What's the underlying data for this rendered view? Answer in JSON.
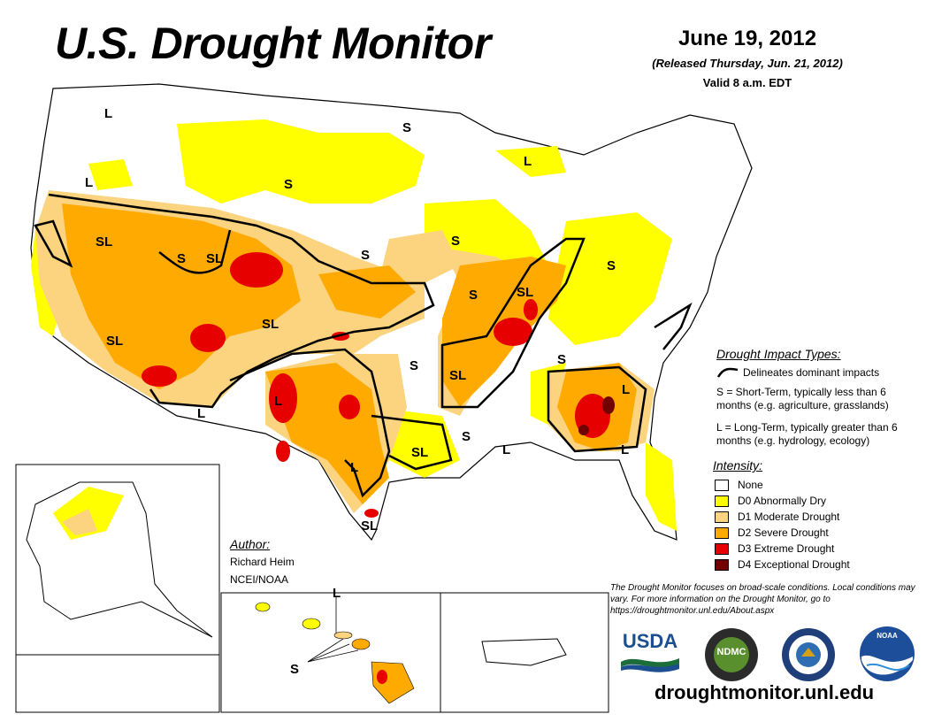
{
  "title": "U.S. Drought Monitor",
  "date": "June 19, 2012",
  "released": "(Released Thursday, Jun. 21, 2012)",
  "valid": "Valid 8 a.m. EDT",
  "impact": {
    "heading": "Drought Impact Types:",
    "delineates": "Delineates dominant impacts",
    "short_term": "S = Short-Term, typically less than 6 months (e.g. agriculture, grasslands)",
    "long_term": "L = Long-Term, typically greater than 6 months (e.g. hydrology, ecology)"
  },
  "intensity": {
    "heading": "Intensity:",
    "levels": [
      {
        "label": "None",
        "color": "#ffffff"
      },
      {
        "label": "D0 Abnormally Dry",
        "color": "#ffff00"
      },
      {
        "label": "D1 Moderate Drought",
        "color": "#fcd37f"
      },
      {
        "label": "D2 Severe Drought",
        "color": "#ffaa00"
      },
      {
        "label": "D3 Extreme Drought",
        "color": "#e60000"
      },
      {
        "label": "D4 Exceptional Drought",
        "color": "#730000"
      }
    ]
  },
  "author": {
    "heading": "Author:",
    "name": "Richard Heim",
    "org": "NCEI/NOAA"
  },
  "disclaimer": "The Drought Monitor focuses on broad-scale conditions. Local conditions may vary. For more information on the Drought Monitor, go to https://droughtmonitor.unl.edu/About.aspx",
  "url": "droughtmonitor.unl.edu",
  "logos": {
    "usda": "USDA",
    "ndmc": "NDMC",
    "noaa": "NOAA"
  },
  "map_labels": {
    "wa": "L",
    "mn": "S",
    "id": "L",
    "mt": "S",
    "ca_n": "SL",
    "ut_w": "S",
    "ut_e": "SL",
    "ne": "S",
    "ia": "S",
    "oh": "S",
    "ca_s": "SL",
    "co": "SL",
    "mo_s": "S",
    "il": "SL",
    "ok_e": "S",
    "ar": "SL",
    "ky": "S",
    "ga": "L",
    "nm": "L",
    "az": "L",
    "tx_w": "L",
    "la": "S",
    "ms": "L",
    "tx_c": "L",
    "tx_e": "SL",
    "tx_s": "SL",
    "fl": "L",
    "mi": "L",
    "hi": "S",
    "hi_l": "L"
  }
}
